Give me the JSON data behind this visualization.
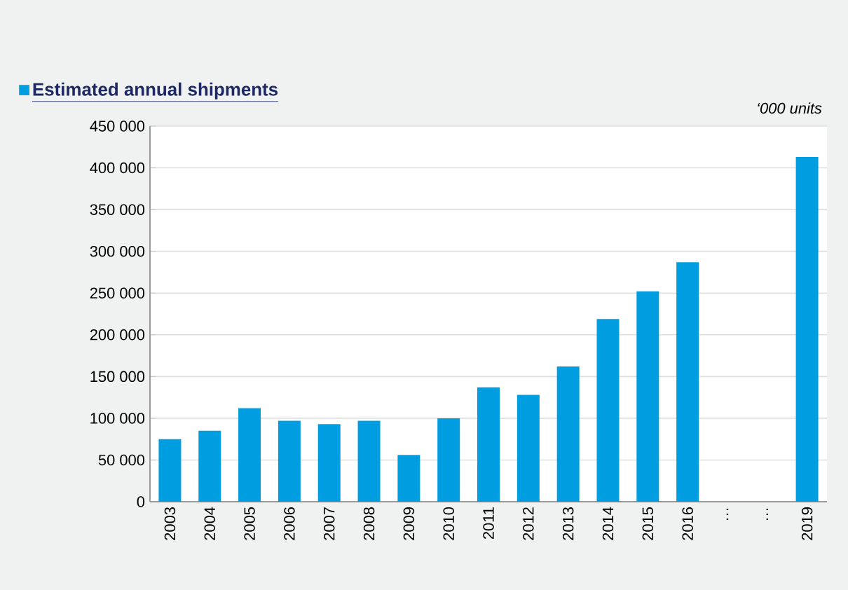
{
  "chart_data": {
    "type": "bar",
    "ylabel": "‘000 units",
    "categories": [
      "2003",
      "2004",
      "2005",
      "2006",
      "2007",
      "2008",
      "2009",
      "2010",
      "2011",
      "2012",
      "2013",
      "2014",
      "2015",
      "2016",
      "…",
      "…",
      "2019"
    ],
    "series": [
      {
        "name": "Estimated annual shipments",
        "color": "#009ee0",
        "values": [
          75000,
          85000,
          112000,
          97000,
          93000,
          97000,
          56000,
          100000,
          137000,
          128000,
          162000,
          219000,
          252000,
          287000,
          null,
          null,
          413000
        ]
      }
    ],
    "ylim": [
      0,
      450000
    ],
    "yticks": [
      {
        "value": 0,
        "label": "0"
      },
      {
        "value": 50000,
        "label": "50 000"
      },
      {
        "value": 100000,
        "label": "100 000"
      },
      {
        "value": 150000,
        "label": "150 000"
      },
      {
        "value": 200000,
        "label": "200 000"
      },
      {
        "value": 250000,
        "label": "250 000"
      },
      {
        "value": 300000,
        "label": "300 000"
      },
      {
        "value": 350000,
        "label": "350 000"
      },
      {
        "value": 400000,
        "label": "400 000"
      },
      {
        "value": 450000,
        "label": "450 000"
      }
    ],
    "grid": "y",
    "legend": "top left"
  }
}
